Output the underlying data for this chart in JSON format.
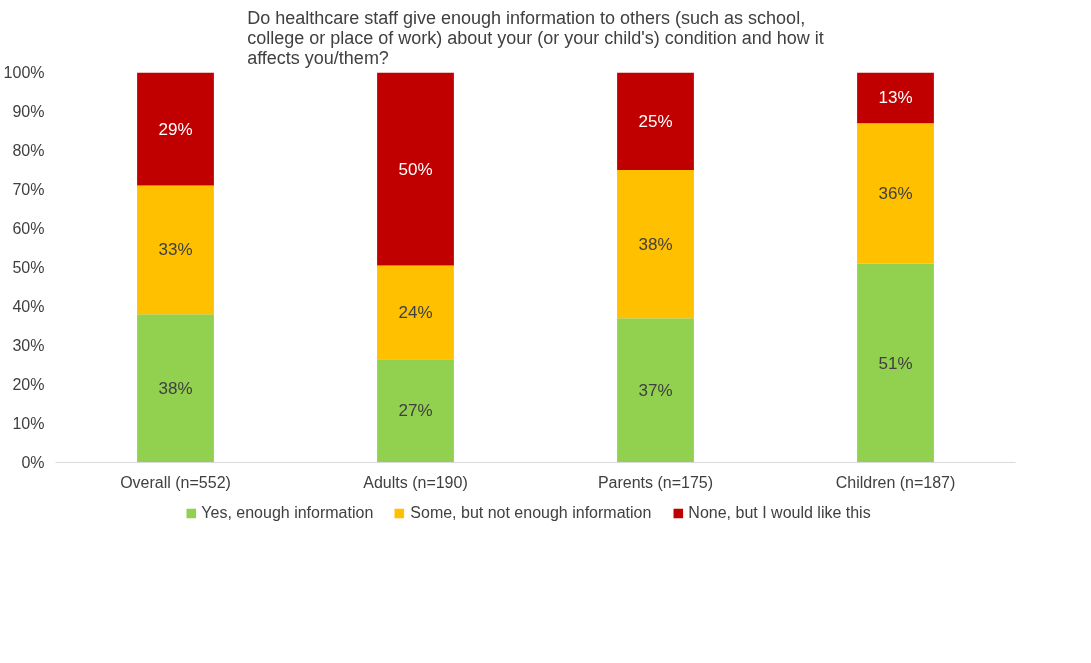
{
  "chart_data": {
    "type": "bar",
    "stacked": true,
    "title": "Do healthcare staff give enough  information to others (such as school, college or place of work) about your (or your child's) condition and how it affects you/them?",
    "categories": [
      "Overall (n=552)",
      "Adults (n=190)",
      "Parents (n=175)",
      "Children (n=187)"
    ],
    "series": [
      {
        "name": "Yes, enough information",
        "color": "#92d050",
        "values": [
          38,
          26.5,
          37,
          51
        ],
        "value_labels": [
          "38%",
          "27%",
          "37%",
          "51%"
        ]
      },
      {
        "name": "Some, but not enough information",
        "color": "#ffc000",
        "values": [
          33,
          24,
          38,
          36
        ],
        "value_labels": [
          "33%",
          "24%",
          "38%",
          "36%"
        ]
      },
      {
        "name": "None, but I would like this",
        "color": "#c00000",
        "values": [
          29,
          49.5,
          25,
          13
        ],
        "value_labels": [
          "29%",
          "50%",
          "25%",
          "13%"
        ]
      }
    ],
    "ylim": [
      0,
      100
    ],
    "yticks": [
      {
        "value": 0,
        "label": "0%"
      },
      {
        "value": 10,
        "label": "10%"
      },
      {
        "value": 20,
        "label": "20%"
      },
      {
        "value": 30,
        "label": "30%"
      },
      {
        "value": 40,
        "label": "40%"
      },
      {
        "value": 50,
        "label": "50%"
      },
      {
        "value": 60,
        "label": "60%"
      },
      {
        "value": 70,
        "label": "70%"
      },
      {
        "value": 80,
        "label": "80%"
      },
      {
        "value": 90,
        "label": "90%"
      },
      {
        "value": 100,
        "label": "100%"
      }
    ],
    "grid": false,
    "legend": "bottom"
  }
}
